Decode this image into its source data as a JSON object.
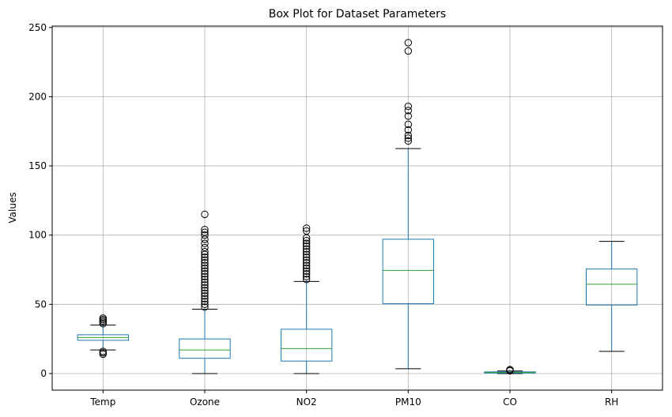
{
  "chart_data": {
    "type": "box",
    "title": "Box Plot for Dataset Parameters",
    "xlabel": "",
    "ylabel": "Values",
    "ylim": [
      -12,
      251
    ],
    "yticks": [
      0,
      50,
      100,
      150,
      200,
      250
    ],
    "grid": true,
    "colors": {
      "box": "#1f77b4",
      "median": "#2ca02c",
      "whisker_cap": "#000000",
      "outlier": "#000000",
      "grid": "#b0b0b0"
    },
    "categories": [
      "Temp",
      "Ozone",
      "NO2",
      "PM10",
      "CO",
      "RH"
    ],
    "boxes": [
      {
        "name": "Temp",
        "whisker_low": 17,
        "q1": 24,
        "median": 26,
        "q3": 28,
        "whisker_high": 35,
        "outliers": [
          14,
          15,
          16,
          36,
          37,
          38,
          39,
          40
        ]
      },
      {
        "name": "Ozone",
        "whisker_low": 0,
        "q1": 11,
        "median": 17,
        "q3": 25,
        "whisker_high": 46.5,
        "outliers": [
          48,
          50,
          52,
          54,
          56,
          58,
          60,
          62,
          64,
          66,
          68,
          70,
          72,
          74,
          76,
          78,
          80,
          82,
          84,
          86,
          88,
          91,
          94,
          97,
          100,
          102,
          104,
          115
        ]
      },
      {
        "name": "NO2",
        "whisker_low": 0,
        "q1": 9,
        "median": 18,
        "q3": 32,
        "whisker_high": 66.5,
        "outliers": [
          68,
          70,
          72,
          74,
          76,
          78,
          80,
          82,
          84,
          86,
          88,
          90,
          92,
          94,
          96,
          98,
          103,
          105
        ]
      },
      {
        "name": "PM10",
        "whisker_low": 3.5,
        "q1": 50.5,
        "median": 74.5,
        "q3": 97,
        "whisker_high": 162.5,
        "outliers": [
          168,
          170,
          172,
          176,
          180,
          186,
          190,
          193,
          233,
          239
        ]
      },
      {
        "name": "CO",
        "whisker_low": 0,
        "q1": 0.4,
        "median": 0.8,
        "q3": 1.2,
        "whisker_high": 1.8,
        "outliers": [
          2.0,
          2.4,
          2.8
        ]
      },
      {
        "name": "RH",
        "whisker_low": 16,
        "q1": 49.5,
        "median": 64.5,
        "q3": 75.5,
        "whisker_high": 95.5,
        "outliers": []
      }
    ]
  }
}
